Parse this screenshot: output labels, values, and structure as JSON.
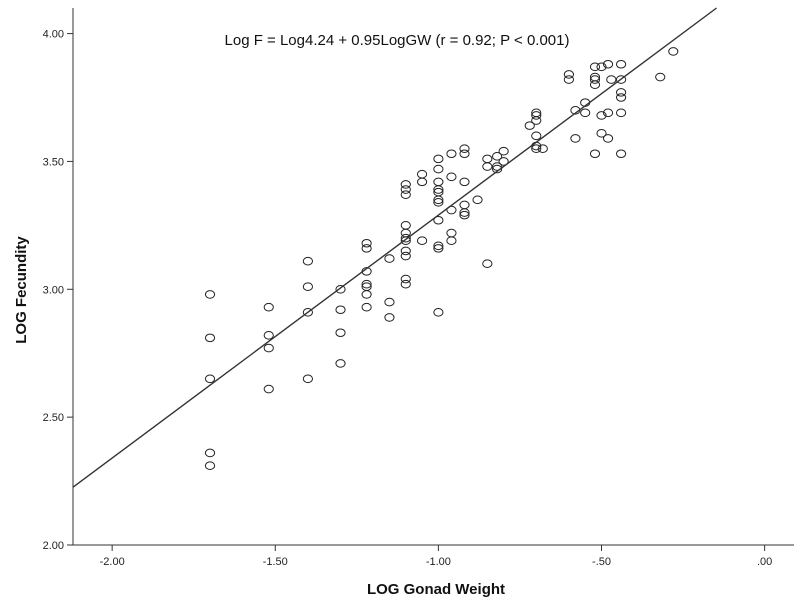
{
  "chart_data": {
    "type": "scatter",
    "title": "",
    "xlabel": "LOG Gonad Weight",
    "ylabel": "LOG Fecundity",
    "annotation": "Log F = Log4.24 + 0.95LogGW  (r = 0.92; P < 0.001)",
    "xlim": [
      -2.12,
      0.09
    ],
    "ylim": [
      2.0,
      4.1
    ],
    "x_ticks": [
      -2.0,
      -1.5,
      -1.0,
      -0.5,
      0.0
    ],
    "x_tick_labels": [
      "-2.00",
      "-1.50",
      "-1.00",
      "-.50",
      ".00"
    ],
    "y_ticks": [
      2.0,
      2.5,
      3.0,
      3.5,
      4.0
    ],
    "y_tick_labels": [
      "2.00",
      "2.50",
      "3.00",
      "3.50",
      "4.00"
    ],
    "grid": false,
    "regression_line": {
      "intercept": 4.24,
      "slope": 0.95
    },
    "points": [
      [
        -1.7,
        2.98
      ],
      [
        -1.7,
        2.81
      ],
      [
        -1.7,
        2.65
      ],
      [
        -1.7,
        2.36
      ],
      [
        -1.7,
        2.31
      ],
      [
        -1.52,
        2.93
      ],
      [
        -1.52,
        2.82
      ],
      [
        -1.52,
        2.77
      ],
      [
        -1.52,
        2.61
      ],
      [
        -1.4,
        3.11
      ],
      [
        -1.4,
        3.01
      ],
      [
        -1.4,
        2.91
      ],
      [
        -1.4,
        2.65
      ],
      [
        -1.3,
        3.0
      ],
      [
        -1.3,
        2.92
      ],
      [
        -1.3,
        2.83
      ],
      [
        -1.3,
        2.71
      ],
      [
        -1.22,
        3.18
      ],
      [
        -1.22,
        3.16
      ],
      [
        -1.22,
        3.07
      ],
      [
        -1.22,
        3.02
      ],
      [
        -1.22,
        3.01
      ],
      [
        -1.22,
        2.98
      ],
      [
        -1.22,
        2.93
      ],
      [
        -1.15,
        3.12
      ],
      [
        -1.15,
        2.95
      ],
      [
        -1.15,
        2.89
      ],
      [
        -1.1,
        3.41
      ],
      [
        -1.1,
        3.39
      ],
      [
        -1.1,
        3.37
      ],
      [
        -1.1,
        3.25
      ],
      [
        -1.1,
        3.22
      ],
      [
        -1.1,
        3.2
      ],
      [
        -1.1,
        3.19
      ],
      [
        -1.1,
        3.15
      ],
      [
        -1.1,
        3.13
      ],
      [
        -1.1,
        3.04
      ],
      [
        -1.1,
        3.02
      ],
      [
        -1.05,
        3.45
      ],
      [
        -1.05,
        3.42
      ],
      [
        -1.05,
        3.19
      ],
      [
        -1.0,
        3.51
      ],
      [
        -1.0,
        3.47
      ],
      [
        -1.0,
        3.42
      ],
      [
        -1.0,
        3.39
      ],
      [
        -1.0,
        3.38
      ],
      [
        -1.0,
        3.35
      ],
      [
        -1.0,
        3.34
      ],
      [
        -1.0,
        3.27
      ],
      [
        -1.0,
        3.17
      ],
      [
        -1.0,
        3.16
      ],
      [
        -1.0,
        2.91
      ],
      [
        -0.96,
        3.53
      ],
      [
        -0.96,
        3.44
      ],
      [
        -0.96,
        3.31
      ],
      [
        -0.96,
        3.22
      ],
      [
        -0.96,
        3.19
      ],
      [
        -0.92,
        3.55
      ],
      [
        -0.92,
        3.53
      ],
      [
        -0.92,
        3.42
      ],
      [
        -0.92,
        3.33
      ],
      [
        -0.92,
        3.3
      ],
      [
        -0.92,
        3.29
      ],
      [
        -0.88,
        3.35
      ],
      [
        -0.85,
        3.51
      ],
      [
        -0.85,
        3.48
      ],
      [
        -0.85,
        3.1
      ],
      [
        -0.82,
        3.52
      ],
      [
        -0.82,
        3.48
      ],
      [
        -0.82,
        3.47
      ],
      [
        -0.8,
        3.54
      ],
      [
        -0.8,
        3.5
      ],
      [
        -0.72,
        3.64
      ],
      [
        -0.7,
        3.69
      ],
      [
        -0.7,
        3.68
      ],
      [
        -0.7,
        3.66
      ],
      [
        -0.7,
        3.6
      ],
      [
        -0.7,
        3.56
      ],
      [
        -0.7,
        3.55
      ],
      [
        -0.68,
        3.55
      ],
      [
        -0.6,
        3.84
      ],
      [
        -0.6,
        3.82
      ],
      [
        -0.58,
        3.7
      ],
      [
        -0.58,
        3.59
      ],
      [
        -0.55,
        3.73
      ],
      [
        -0.55,
        3.69
      ],
      [
        -0.52,
        3.87
      ],
      [
        -0.52,
        3.83
      ],
      [
        -0.52,
        3.82
      ],
      [
        -0.52,
        3.8
      ],
      [
        -0.52,
        3.53
      ],
      [
        -0.5,
        3.87
      ],
      [
        -0.5,
        3.68
      ],
      [
        -0.5,
        3.61
      ],
      [
        -0.48,
        3.88
      ],
      [
        -0.48,
        3.69
      ],
      [
        -0.48,
        3.59
      ],
      [
        -0.47,
        3.82
      ],
      [
        -0.44,
        3.88
      ],
      [
        -0.44,
        3.82
      ],
      [
        -0.44,
        3.77
      ],
      [
        -0.44,
        3.75
      ],
      [
        -0.44,
        3.69
      ],
      [
        -0.44,
        3.53
      ],
      [
        -0.32,
        3.83
      ],
      [
        -0.28,
        3.93
      ]
    ]
  }
}
